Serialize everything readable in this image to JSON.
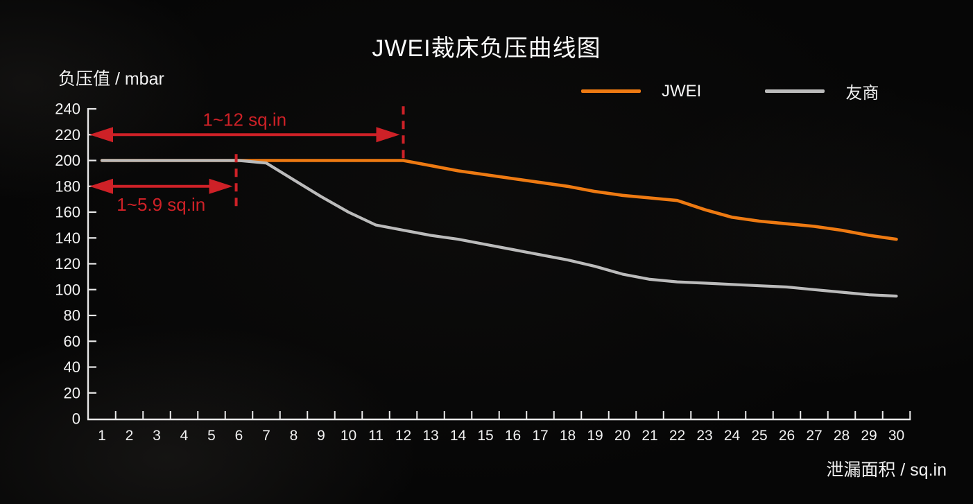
{
  "title": "JWEI裁床负压曲线图",
  "y_axis_title": "负压值 / mbar",
  "x_axis_title": "泄漏面积 / sq.in",
  "legend": {
    "items": [
      {
        "label": "JWEI",
        "color": "#ee7a12"
      },
      {
        "label": "友商",
        "color": "#bbbbbb"
      }
    ]
  },
  "colors": {
    "background": "#060606",
    "axis": "#e9e9e9",
    "text": "#f2f2f2",
    "annotation_red": "#ce2127",
    "jwei_orange": "#ee7a12",
    "competitor_gray": "#bbbbbb"
  },
  "chart_data": {
    "type": "line",
    "title": "JWEI裁床负压曲线图",
    "xlabel": "泄漏面积 / sq.in",
    "ylabel": "负压值 / mbar",
    "x": [
      1,
      2,
      3,
      4,
      5,
      6,
      7,
      8,
      9,
      10,
      11,
      12,
      13,
      14,
      15,
      16,
      17,
      18,
      19,
      20,
      21,
      22,
      23,
      24,
      25,
      26,
      27,
      28,
      29,
      30
    ],
    "ylim": [
      0,
      240
    ],
    "y_tick_step": 20,
    "grid": false,
    "legend_position": "top",
    "series": [
      {
        "name": "JWEI",
        "color": "#ee7a12",
        "values": [
          200,
          200,
          200,
          200,
          200,
          200,
          200,
          200,
          200,
          200,
          200,
          200,
          196,
          192,
          189,
          186,
          183,
          180,
          176,
          173,
          171,
          169,
          162,
          156,
          153,
          151,
          149,
          146,
          142,
          139
        ]
      },
      {
        "name": "友商",
        "color": "#bbbbbb",
        "values": [
          200,
          200,
          200,
          200,
          200,
          200,
          198,
          185,
          172,
          160,
          150,
          146,
          142,
          139,
          135,
          131,
          127,
          123,
          118,
          112,
          108,
          106,
          105,
          104,
          103,
          102,
          100,
          98,
          96,
          95
        ]
      }
    ],
    "annotations": [
      {
        "text": "1~12 sq.in",
        "arrow_y": 220,
        "end_x": 12,
        "dash_x": 12,
        "dash_y_top": 242,
        "dash_y_bottom": 200,
        "label_position": "above"
      },
      {
        "text": "1~5.9 sq.in",
        "arrow_y": 180,
        "end_x": 5.9,
        "dash_x": 5.9,
        "dash_y_top": 205,
        "dash_y_bottom": 162,
        "label_position": "below"
      }
    ]
  }
}
